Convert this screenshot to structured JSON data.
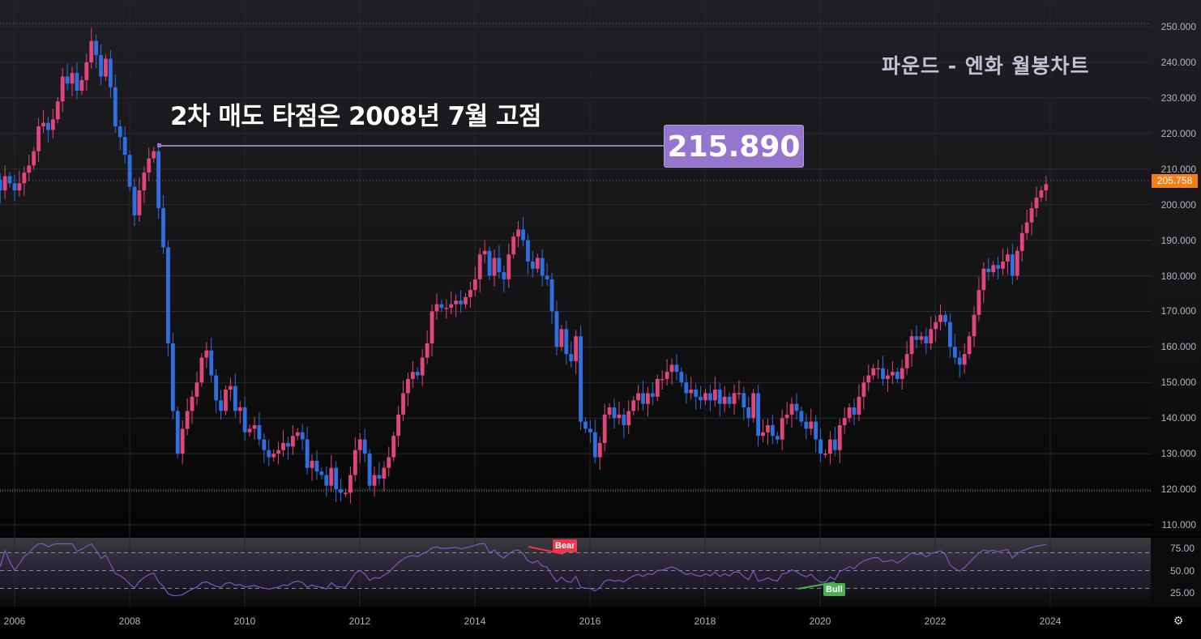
{
  "chart_data": {
    "type": "candlestick",
    "title": "파운드 - 엔화 월봉차트",
    "annotation": {
      "text": "2차 매도 타점은 2008년 7월 고점",
      "price_label": "215.890",
      "level": 215.89
    },
    "last_price": "205.758",
    "price_axis": {
      "ticks": [
        "250.000",
        "240.000",
        "230.000",
        "220.000",
        "210.000",
        "200.000",
        "190.000",
        "180.000",
        "170.000",
        "160.000",
        "150.000",
        "140.000",
        "130.000",
        "120.000",
        "110.000"
      ],
      "range": [
        110,
        250
      ]
    },
    "time_axis": {
      "ticks": [
        "2006",
        "2008",
        "2010",
        "2012",
        "2014",
        "2016",
        "2018",
        "2020",
        "2022",
        "2024"
      ]
    },
    "rsi": {
      "ticks": [
        "75.00",
        "50.00",
        "25.00"
      ],
      "levels": [
        70,
        50,
        30
      ],
      "signals": [
        {
          "label": "Bear",
          "color": "#f23645"
        },
        {
          "label": "Bull",
          "color": "#4caf50"
        }
      ]
    },
    "colors": {
      "up": "#e0457b",
      "down": "#2f6fe0",
      "rsi_line": "#7e57c2",
      "annotation_line": "#8a7fb3",
      "last_price_bg": "#f57f17",
      "label_bg": "#9575cd"
    },
    "series_start": "2005-07",
    "closes": [
      203,
      205,
      207,
      204,
      208,
      206,
      204,
      206,
      209,
      211,
      215,
      222,
      223,
      221,
      224,
      229,
      236,
      234,
      237,
      232,
      235,
      240,
      246,
      242,
      236,
      241,
      233,
      222,
      219,
      214,
      205,
      197,
      204,
      209,
      213,
      215,
      199,
      188,
      161,
      142,
      130,
      137,
      142,
      146,
      150,
      157,
      159,
      152,
      145,
      142,
      148,
      149,
      142,
      143,
      136,
      137,
      138,
      134,
      131,
      129,
      130,
      131,
      133,
      132,
      135,
      136,
      134,
      126,
      128,
      125,
      124,
      121,
      126,
      120,
      119,
      119,
      124,
      131,
      134,
      130,
      121,
      124,
      123,
      126,
      129,
      135,
      141,
      147,
      151,
      153,
      152,
      157,
      161,
      170,
      172,
      171,
      171,
      172,
      173,
      172,
      174,
      176,
      179,
      186,
      187,
      180,
      185,
      181,
      179,
      186,
      191,
      193,
      190,
      184,
      182,
      185,
      180,
      179,
      170,
      160,
      165,
      158,
      156,
      163,
      139,
      137,
      136,
      129,
      133,
      141,
      143,
      140,
      141,
      138,
      142,
      145,
      147,
      144,
      147,
      146,
      151,
      151,
      153,
      155,
      153,
      150,
      147,
      148,
      146,
      145,
      147,
      145,
      148,
      144,
      146,
      144,
      147,
      147,
      143,
      140,
      147,
      135,
      136,
      138,
      135,
      134,
      140,
      141,
      144,
      142,
      139,
      137,
      139,
      134,
      130,
      130,
      134,
      131,
      138,
      140,
      143,
      141,
      146,
      150,
      152,
      154,
      154,
      151,
      152,
      153,
      151,
      154,
      158,
      163,
      162,
      163,
      161,
      165,
      167,
      169,
      167,
      160,
      157,
      155,
      158,
      163,
      169,
      176,
      182,
      181,
      183,
      182,
      184,
      186,
      180,
      187,
      192,
      195,
      199,
      202,
      204,
      205.758
    ]
  },
  "ui": {
    "settings_icon": "⚙"
  }
}
